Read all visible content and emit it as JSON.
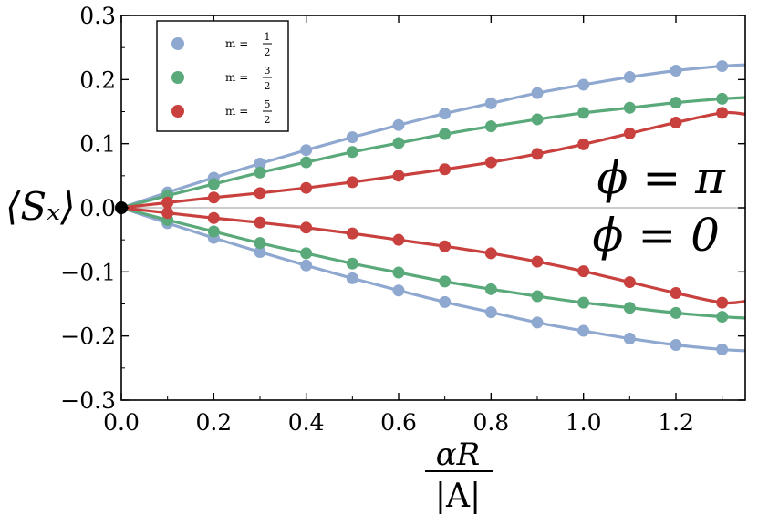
{
  "chart_data": {
    "type": "line",
    "x_range": [
      0.0,
      1.35
    ],
    "y_range": [
      -0.3,
      0.3
    ],
    "x_ticks": [
      "0.0",
      "0.2",
      "0.4",
      "0.6",
      "0.8",
      "1.0",
      "1.2"
    ],
    "y_ticks": [
      "0.3",
      "0.2",
      "0.1",
      "0.0",
      "−0.1",
      "−0.2",
      "−0.3"
    ],
    "ylabel": "⟨Sₓ⟩",
    "xlabel_numerator": "αR",
    "xlabel_denominator": "|A|",
    "annotation_top": "ϕ = π",
    "annotation_bottom": "ϕ = 0",
    "origin_point": {
      "x": 0.0,
      "y": 0.0,
      "color": "#000000"
    },
    "series": [
      {
        "name": "m = 1/2",
        "legend_prefix": "m =",
        "legend_num": "1",
        "legend_den": "2",
        "color": "#8fa8d0",
        "x": [
          0.0,
          0.1,
          0.2,
          0.3,
          0.4,
          0.5,
          0.6,
          0.7,
          0.8,
          0.9,
          1.0,
          1.1,
          1.2,
          1.3
        ],
        "y_upper": [
          0.0,
          0.024,
          0.047,
          0.069,
          0.09,
          0.11,
          0.129,
          0.147,
          0.163,
          0.179,
          0.192,
          0.204,
          0.214,
          0.221
        ],
        "curve_end_upper": 0.223
      },
      {
        "name": "m = 3/2",
        "legend_prefix": "m =",
        "legend_num": "3",
        "legend_den": "2",
        "color": "#5aa97a",
        "x": [
          0.0,
          0.1,
          0.2,
          0.3,
          0.4,
          0.5,
          0.6,
          0.7,
          0.8,
          0.9,
          1.0,
          1.1,
          1.2,
          1.3
        ],
        "y_upper": [
          0.0,
          0.019,
          0.037,
          0.055,
          0.071,
          0.087,
          0.101,
          0.115,
          0.127,
          0.138,
          0.148,
          0.156,
          0.164,
          0.17
        ],
        "curve_end_upper": 0.172
      },
      {
        "name": "m = 5/2",
        "legend_prefix": "m =",
        "legend_num": "5",
        "legend_den": "2",
        "color": "#c8413e",
        "x": [
          0.0,
          0.1,
          0.2,
          0.3,
          0.4,
          0.5,
          0.6,
          0.7,
          0.8,
          0.9,
          1.0,
          1.1,
          1.2,
          1.3
        ],
        "y_upper": [
          0.0,
          0.008,
          0.016,
          0.023,
          0.031,
          0.04,
          0.05,
          0.06,
          0.071,
          0.084,
          0.099,
          0.116,
          0.133,
          0.148
        ],
        "curve_end_upper": 0.146
      }
    ],
    "grid": false,
    "legend_position": "top-left"
  }
}
